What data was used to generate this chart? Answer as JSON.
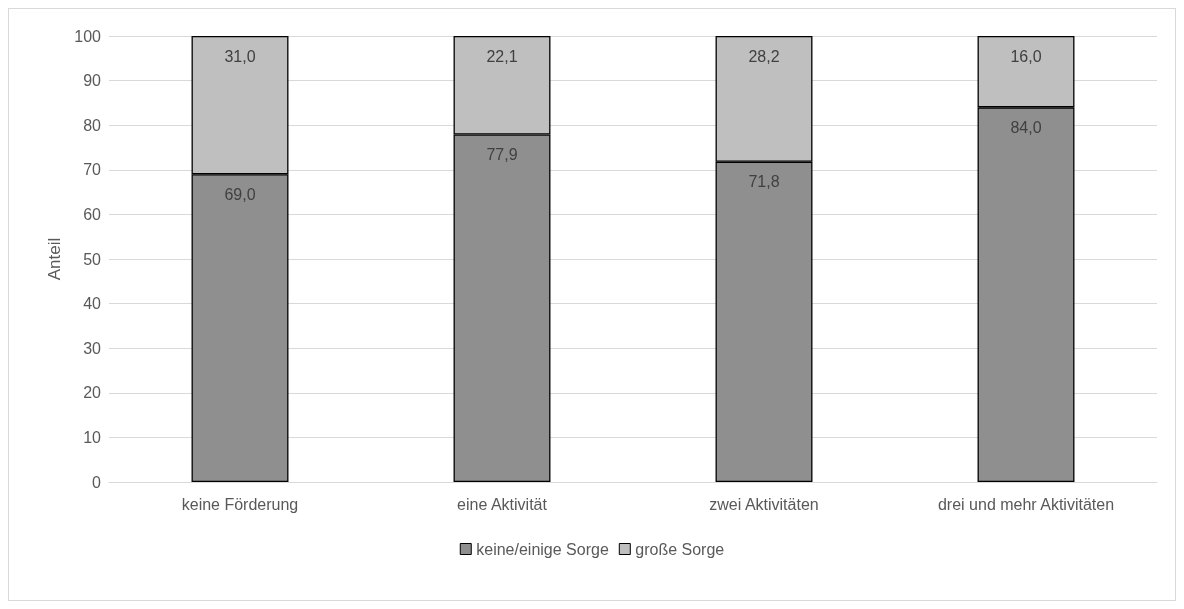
{
  "chart_data": {
    "type": "bar",
    "stacked": true,
    "ylabel": "Anteil",
    "categories": [
      "keine Förderung",
      "eine Aktivität",
      "zwei Aktivitäten",
      "drei und mehr Aktivitäten"
    ],
    "series": [
      {
        "name": "keine/einige Sorge",
        "color": "#8f8f8f",
        "values": [
          69.0,
          77.9,
          71.8,
          84.0
        ],
        "value_labels": [
          "69,0",
          "77,9",
          "71,8",
          "84,0"
        ]
      },
      {
        "name": "große Sorge",
        "color": "#bfbfbf",
        "values": [
          31.0,
          22.1,
          28.2,
          16.0
        ],
        "value_labels": [
          "31,0",
          "22,1",
          "28,2",
          "16,0"
        ]
      }
    ],
    "ylim": [
      0,
      100
    ],
    "yticks": [
      0,
      10,
      20,
      30,
      40,
      50,
      60,
      70,
      80,
      90,
      100
    ],
    "grid": "y",
    "legend": "bottom"
  }
}
